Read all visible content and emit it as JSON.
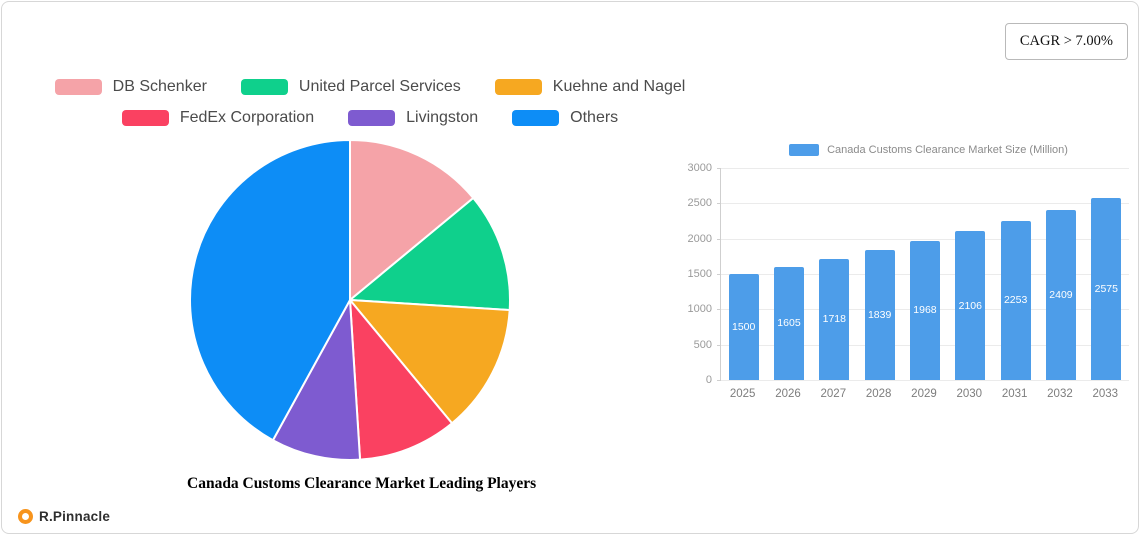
{
  "badge": {
    "text": "CAGR > 7.00%"
  },
  "series_legend": {
    "items": [
      {
        "label": "DB Schenker",
        "color": "#f5a3a8"
      },
      {
        "label": "United Parcel Services",
        "color": "#0fd08c"
      },
      {
        "label": "Kuehne and Nagel",
        "color": "#f6a821"
      },
      {
        "label": "FedEx Corporation",
        "color": "#fa4161"
      },
      {
        "label": "Livingston",
        "color": "#7e5bd0"
      },
      {
        "label": "Others",
        "color": "#0d8df6"
      }
    ]
  },
  "chart_data": [
    {
      "type": "pie",
      "title": "Canada Customs Clearance Market Leading Players",
      "labels": [
        "DB Schenker",
        "United Parcel Services",
        "Kuehne and Nagel",
        "FedEx Corporation",
        "Livingston",
        "Others"
      ],
      "values": [
        14,
        12,
        13,
        10,
        9,
        42
      ],
      "colors": [
        "#f5a3a8",
        "#0fd08c",
        "#f6a821",
        "#fa4161",
        "#7e5bd0",
        "#0d8df6"
      ],
      "legend_position": "top"
    },
    {
      "type": "bar",
      "legend": "Canada Customs Clearance Market Size (Million)",
      "categories": [
        "2025",
        "2026",
        "2027",
        "2028",
        "2029",
        "2030",
        "2031",
        "2032",
        "2033"
      ],
      "values": [
        1500,
        1605,
        1718,
        1839,
        1968,
        2106,
        2253,
        2409,
        2575
      ],
      "ylim": [
        0,
        3000
      ],
      "yticks": [
        0,
        500,
        1000,
        1500,
        2000,
        2500,
        3000
      ],
      "grid": true,
      "bar_color": "#4d9de9",
      "value_label_color": "#ffffff"
    }
  ],
  "footer": {
    "brand": "R.Pinnacle"
  }
}
